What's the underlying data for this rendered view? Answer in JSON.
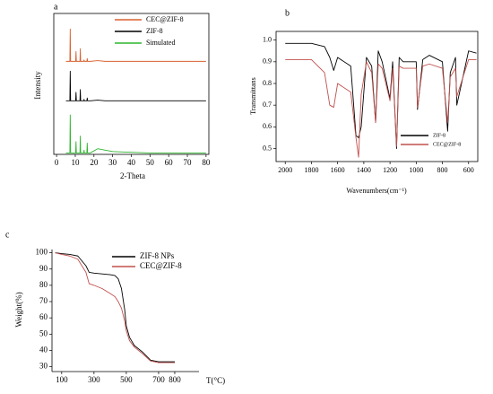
{
  "chart_data": [
    {
      "type": "line",
      "label": "a",
      "x_label": "2-Theta",
      "y_label": "Intensity",
      "xlim": [
        -1.5,
        81.5
      ],
      "ylim": [
        0,
        100
      ],
      "xticks": [
        0,
        10,
        20,
        30,
        40,
        50,
        60,
        70,
        80
      ],
      "legend": "upper right",
      "x": [
        5,
        7.1,
        7.3,
        7.5,
        10.2,
        10.4,
        10.6,
        12.5,
        12.7,
        12.9,
        14.5,
        14.7,
        14.9,
        16.2,
        16.4,
        16.6,
        18,
        22,
        26,
        30,
        40,
        50,
        60,
        70,
        80
      ],
      "series": [
        {
          "name": "CEC@ZIF-8",
          "color": "#d9602f",
          "values": [
            66,
            66,
            89,
            66,
            66,
            73,
            66,
            66,
            75,
            66,
            66,
            67,
            66,
            66,
            68,
            66,
            66,
            66.5,
            66,
            66,
            66,
            66,
            66,
            66,
            66
          ]
        },
        {
          "name": "ZIF-8",
          "color": "#000000",
          "values": [
            38,
            38,
            59,
            38,
            38,
            44,
            38,
            38,
            46,
            38,
            38,
            39,
            38,
            38,
            40,
            38,
            38,
            38.5,
            38,
            38,
            38,
            38,
            38,
            38,
            38
          ]
        },
        {
          "name": "Simulated",
          "color": "#2db52d",
          "values": [
            1,
            1,
            28,
            1,
            1,
            9,
            1,
            1,
            13,
            1,
            1,
            3,
            1,
            1,
            8,
            1,
            1,
            4,
            3,
            2,
            1.5,
            1,
            1,
            1,
            1
          ]
        }
      ]
    },
    {
      "type": "line",
      "label": "b",
      "x_label": "Wavenumbers(cm⁻¹)",
      "y_label": "Transmittans",
      "xlim": [
        2070,
        530
      ],
      "ylim": [
        0.44,
        1.04
      ],
      "xticks": [
        2000,
        1800,
        1600,
        1400,
        1200,
        1000,
        800,
        600
      ],
      "yticks": [
        0.5,
        0.6,
        0.7,
        0.8,
        0.9,
        {
          "value": 1,
          "label": "1.0"
        }
      ],
      "legend": "lower right",
      "x": [
        2000,
        1800,
        1700,
        1660,
        1630,
        1600,
        1500,
        1460,
        1440,
        1420,
        1380,
        1340,
        1310,
        1290,
        1260,
        1200,
        1180,
        1150,
        1130,
        1100,
        1000,
        990,
        950,
        900,
        800,
        760,
        740,
        700,
        690,
        600,
        540
      ],
      "series": [
        {
          "name": "ZIF-8",
          "color": "#000000",
          "values": [
            0.985,
            0.985,
            0.97,
            0.92,
            0.86,
            0.92,
            0.88,
            0.56,
            0.55,
            0.6,
            0.92,
            0.88,
            0.62,
            0.95,
            0.9,
            0.73,
            0.9,
            0.5,
            0.92,
            0.9,
            0.9,
            0.68,
            0.91,
            0.93,
            0.9,
            0.58,
            0.85,
            0.92,
            0.7,
            0.95,
            0.94
          ]
        },
        {
          "name": "CEC@ZIF-8",
          "color": "#c0504d",
          "values": [
            0.91,
            0.91,
            0.85,
            0.7,
            0.69,
            0.8,
            0.76,
            0.55,
            0.46,
            0.75,
            0.9,
            0.85,
            0.62,
            0.89,
            0.87,
            0.72,
            0.87,
            0.51,
            0.88,
            0.87,
            0.87,
            0.69,
            0.88,
            0.89,
            0.87,
            0.62,
            0.83,
            0.87,
            0.74,
            0.91,
            0.91
          ]
        }
      ]
    },
    {
      "type": "line",
      "label": "c",
      "x_label": "T(°C)",
      "y_label": "Weight(%)",
      "xlim": [
        40,
        950
      ],
      "ylim": [
        27,
        102
      ],
      "xticks": [
        100,
        300,
        500,
        700,
        800
      ],
      "yticks": [
        30,
        40,
        50,
        60,
        70,
        80,
        90,
        100
      ],
      "legend": "upper right",
      "x": [
        60,
        100,
        150,
        200,
        250,
        270,
        300,
        350,
        400,
        430,
        450,
        470,
        490,
        500,
        520,
        550,
        600,
        650,
        700,
        750,
        800
      ],
      "series": [
        {
          "name": "ZIF-8 NPs",
          "color": "#000000",
          "values": [
            100,
            99.5,
            99,
            98,
            92,
            88,
            87.5,
            87,
            86.5,
            86,
            84,
            78,
            65,
            55,
            48,
            43,
            39,
            34,
            33,
            33,
            33
          ]
        },
        {
          "name": "CEC@ZIF-8",
          "color": "#c0504d",
          "values": [
            100,
            99,
            98,
            96,
            88,
            81,
            80,
            78,
            75,
            73,
            70,
            66,
            58,
            52,
            46,
            42,
            38,
            33.5,
            32.5,
            32.5,
            32.5
          ]
        }
      ]
    }
  ]
}
